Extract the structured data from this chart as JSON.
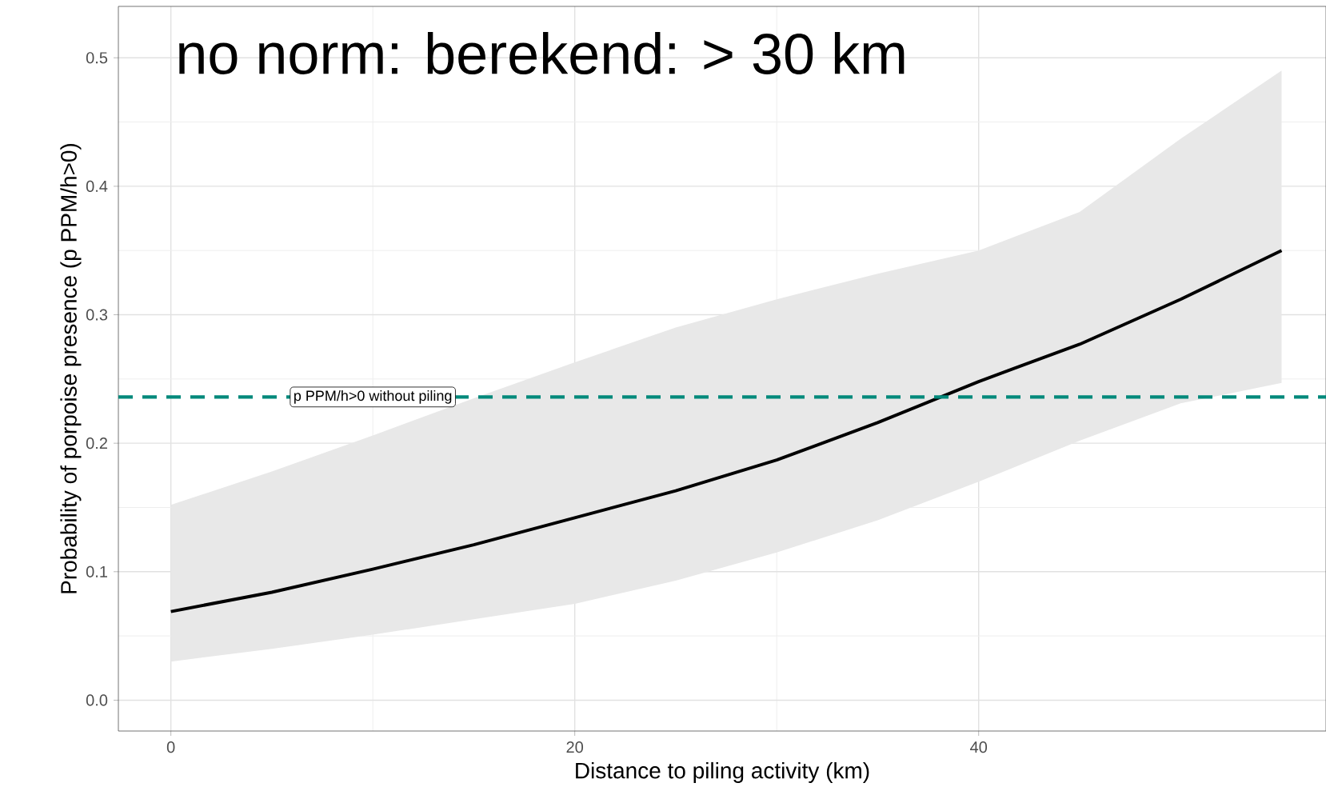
{
  "chart_data": {
    "type": "line",
    "title": "no norm: berekend: > 30 km",
    "xlabel": "Distance to piling activity (km)",
    "ylabel": "Probability of porpoise presence (p PPM/h>0)",
    "x": [
      0,
      5,
      10,
      15,
      20,
      25,
      30,
      35,
      40,
      45,
      50,
      55
    ],
    "series": [
      {
        "color": "#000000",
        "values": [
          0.069,
          0.084,
          0.102,
          0.121,
          0.142,
          0.163,
          0.187,
          0.216,
          0.248,
          0.277,
          0.312,
          0.35
        ],
        "lower": [
          0.03,
          0.04,
          0.051,
          0.063,
          0.075,
          0.093,
          0.115,
          0.14,
          0.17,
          0.202,
          0.231,
          0.247
        ],
        "upper": [
          0.152,
          0.178,
          0.206,
          0.235,
          0.263,
          0.29,
          0.312,
          0.332,
          0.35,
          0.38,
          0.437,
          0.49
        ]
      }
    ],
    "xlim": [
      -2.6,
      57.2
    ],
    "ylim": [
      -0.024,
      0.54
    ],
    "xticks": [
      0,
      20,
      40
    ],
    "yticks": [
      {
        "value": 0,
        "label": "0.0"
      },
      {
        "value": 0.1,
        "label": "0.1"
      },
      {
        "value": 0.2,
        "label": "0.2"
      },
      {
        "value": 0.3,
        "label": "0.3"
      },
      {
        "value": 0.4,
        "label": "0.4"
      },
      {
        "value": 0.5,
        "label": "0.5"
      }
    ],
    "ref_lines": [
      {
        "axis": "y",
        "value": 0.236,
        "color": "#00897b",
        "line_style": "dashed"
      }
    ],
    "annotations": [
      {
        "text": "p PPM/h>0 without piling",
        "x": 10,
        "y": 0.236
      }
    ],
    "grid": true,
    "line_style": "solid"
  }
}
